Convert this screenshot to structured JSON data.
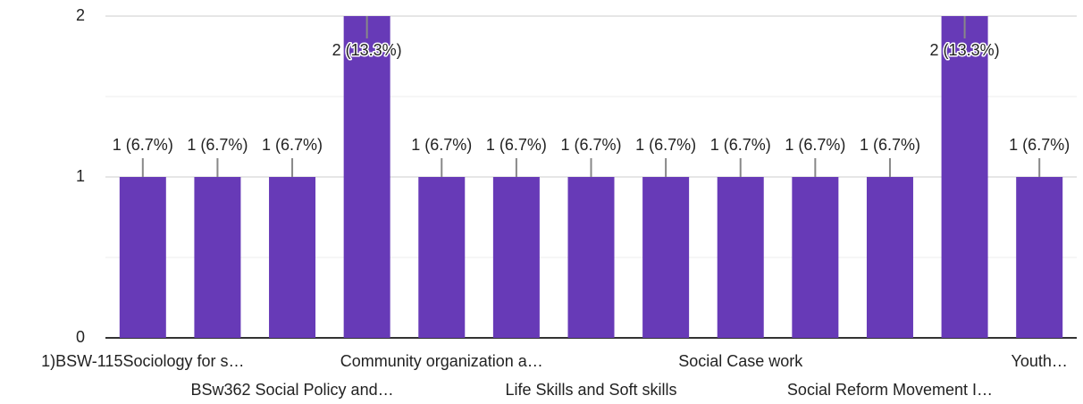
{
  "chart_data": {
    "type": "bar",
    "categories": [
      "1)BSW-115Sociology for s…",
      null,
      "BSw362 Social Policy and…",
      null,
      "Community organization a…",
      null,
      "Life Skills and Soft skills",
      null,
      "Social Case work",
      null,
      "Social Reform Movement I…",
      null,
      "Youth…"
    ],
    "values": [
      1,
      1,
      1,
      2,
      1,
      1,
      1,
      1,
      1,
      1,
      1,
      2,
      1
    ],
    "value_labels": [
      "1 (6.7%)",
      "1 (6.7%)",
      "1 (6.7%)",
      "2 (13.3%)",
      "1 (6.7%)",
      "1 (6.7%)",
      "1 (6.7%)",
      "1 (6.7%)",
      "1 (6.7%)",
      "1 (6.7%)",
      "1 (6.7%)",
      "2 (13.3%)",
      "1 (6.7%)"
    ],
    "color": "#673ab7",
    "ylim": [
      0,
      2
    ],
    "yticks": [
      0,
      1,
      2
    ],
    "minor_yticks": [
      0.5,
      1.5
    ],
    "grid": true
  }
}
